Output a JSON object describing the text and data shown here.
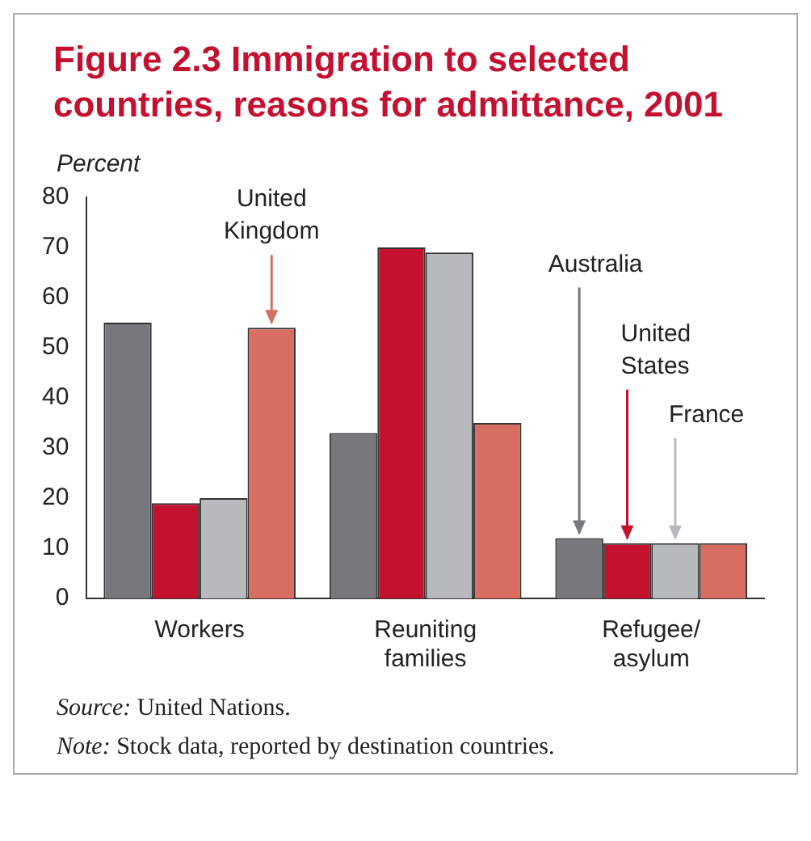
{
  "chart_data": {
    "type": "bar",
    "title": "Figure 2.3  Immigration to selected countries, reasons for admittance, 2001",
    "ylabel": "Percent",
    "categories": [
      "Workers",
      "Reuniting\nfamilies",
      "Refugee/\nasylum"
    ],
    "series": [
      {
        "name": "Australia",
        "color": "#77787b",
        "values": [
          55,
          33,
          12
        ]
      },
      {
        "name": "United\nStates",
        "color": "#c3112f",
        "values": [
          19,
          70,
          11
        ]
      },
      {
        "name": "France",
        "color": "#b8b9bc",
        "values": [
          20,
          69,
          11
        ]
      },
      {
        "name": "United\nKingdom",
        "color": "#d86e61",
        "values": [
          54,
          35,
          11
        ]
      }
    ],
    "ylim": [
      0,
      80
    ],
    "yticks": [
      0,
      10,
      20,
      30,
      40,
      50,
      60,
      70,
      80
    ],
    "grid": false,
    "legend": false,
    "annotations": [
      "Source: United Nations.",
      "Note: Stock data, reported by destination countries."
    ]
  }
}
